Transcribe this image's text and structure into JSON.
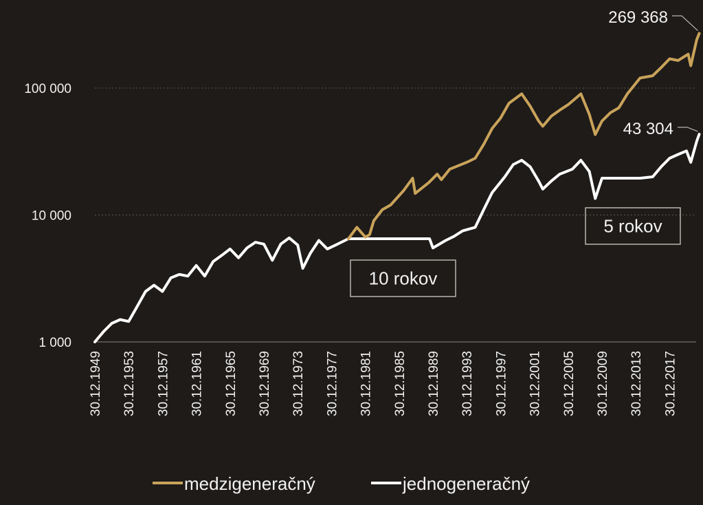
{
  "chart_data": {
    "type": "line",
    "title": "",
    "xlabel": "",
    "ylabel": "",
    "y_scale": "log",
    "ylim": [
      1000,
      300000
    ],
    "xlim": [
      1949.99,
      2021.5
    ],
    "grid": "horizontal dotted",
    "legend_position": "bottom",
    "y_ticks": [
      {
        "value": 1000,
        "label": "1 000"
      },
      {
        "value": 10000,
        "label": "10 000"
      },
      {
        "value": 100000,
        "label": "100 000"
      }
    ],
    "x_tick_labels": [
      {
        "year": 1950,
        "label": "30.12.1949"
      },
      {
        "year": 1954,
        "label": "30.12.1953"
      },
      {
        "year": 1958,
        "label": "30.12.1957"
      },
      {
        "year": 1962,
        "label": "30.12.1961"
      },
      {
        "year": 1966,
        "label": "30.12.1965"
      },
      {
        "year": 1970,
        "label": "30.12.1969"
      },
      {
        "year": 1974,
        "label": "30.12.1973"
      },
      {
        "year": 1978,
        "label": "30.12.1977"
      },
      {
        "year": 1982,
        "label": "30.12.1981"
      },
      {
        "year": 1986,
        "label": "30.12.1985"
      },
      {
        "year": 1990,
        "label": "30.12.1989"
      },
      {
        "year": 1994,
        "label": "30.12.1993"
      },
      {
        "year": 1998,
        "label": "30.12.1997"
      },
      {
        "year": 2002,
        "label": "30.12.2001"
      },
      {
        "year": 2006,
        "label": "30.12.2005"
      },
      {
        "year": 2010,
        "label": "30.12.2009"
      },
      {
        "year": 2014,
        "label": "30.12.2013"
      },
      {
        "year": 2018,
        "label": "30.12.2017"
      }
    ],
    "series": [
      {
        "name": "medzigeneračný",
        "color": "#c9a35a",
        "points": [
          [
            1980.0,
            6500
          ],
          [
            1981.0,
            8000
          ],
          [
            1982.0,
            6700
          ],
          [
            1982.5,
            7000
          ],
          [
            1983.0,
            9000
          ],
          [
            1984.0,
            11000
          ],
          [
            1985.0,
            12000
          ],
          [
            1986.5,
            15500
          ],
          [
            1987.6,
            19500
          ],
          [
            1987.9,
            14800
          ],
          [
            1989.5,
            18000
          ],
          [
            1990.5,
            21000
          ],
          [
            1991.0,
            19000
          ],
          [
            1992.0,
            23000
          ],
          [
            1994.0,
            26000
          ],
          [
            1995.0,
            28000
          ],
          [
            1996.0,
            36000
          ],
          [
            1997.0,
            48000
          ],
          [
            1998.0,
            58000
          ],
          [
            1999.0,
            76000
          ],
          [
            2000.5,
            90000
          ],
          [
            2001.5,
            72000
          ],
          [
            2002.5,
            55000
          ],
          [
            2003.0,
            50000
          ],
          [
            2004.0,
            60000
          ],
          [
            2005.0,
            67000
          ],
          [
            2006.0,
            74000
          ],
          [
            2007.5,
            90000
          ],
          [
            2008.5,
            62000
          ],
          [
            2009.2,
            43000
          ],
          [
            2010.0,
            55000
          ],
          [
            2011.0,
            64000
          ],
          [
            2012.0,
            70000
          ],
          [
            2013.0,
            90000
          ],
          [
            2014.5,
            120000
          ],
          [
            2016.0,
            125000
          ],
          [
            2017.0,
            145000
          ],
          [
            2018.0,
            170000
          ],
          [
            2019.0,
            165000
          ],
          [
            2020.2,
            185000
          ],
          [
            2020.5,
            150000
          ],
          [
            2021.2,
            240000
          ],
          [
            2021.5,
            269368
          ]
        ]
      },
      {
        "name": "jednogeneračný",
        "color": "#ffffff",
        "points": [
          [
            1950.0,
            1000
          ],
          [
            1951.0,
            1200
          ],
          [
            1952.0,
            1400
          ],
          [
            1953.0,
            1500
          ],
          [
            1954.0,
            1450
          ],
          [
            1955.0,
            1900
          ],
          [
            1956.0,
            2500
          ],
          [
            1957.0,
            2800
          ],
          [
            1958.0,
            2500
          ],
          [
            1959.0,
            3200
          ],
          [
            1960.0,
            3400
          ],
          [
            1961.0,
            3300
          ],
          [
            1962.0,
            4000
          ],
          [
            1963.0,
            3300
          ],
          [
            1964.0,
            4300
          ],
          [
            1965.0,
            4800
          ],
          [
            1966.0,
            5400
          ],
          [
            1967.0,
            4600
          ],
          [
            1968.0,
            5500
          ],
          [
            1969.0,
            6100
          ],
          [
            1970.0,
            5900
          ],
          [
            1971.0,
            4400
          ],
          [
            1972.0,
            5900
          ],
          [
            1973.0,
            6600
          ],
          [
            1974.0,
            5800
          ],
          [
            1974.6,
            3800
          ],
          [
            1975.5,
            5000
          ],
          [
            1976.5,
            6300
          ],
          [
            1977.5,
            5400
          ],
          [
            1978.5,
            5800
          ],
          [
            1980.0,
            6500
          ],
          [
            1989.6,
            6500
          ],
          [
            1990.0,
            5500
          ],
          [
            1991.5,
            6300
          ],
          [
            1992.5,
            6800
          ],
          [
            1993.5,
            7500
          ],
          [
            1995.0,
            8000
          ],
          [
            1996.0,
            11000
          ],
          [
            1997.0,
            15000
          ],
          [
            1998.5,
            20000
          ],
          [
            1999.5,
            25000
          ],
          [
            2000.5,
            27000
          ],
          [
            2001.5,
            24000
          ],
          [
            2002.5,
            18500
          ],
          [
            2003.0,
            16000
          ],
          [
            2004.0,
            18500
          ],
          [
            2005.0,
            21000
          ],
          [
            2006.5,
            23000
          ],
          [
            2007.5,
            27000
          ],
          [
            2008.5,
            22000
          ],
          [
            2009.2,
            13500
          ],
          [
            2010.0,
            19500
          ],
          [
            2014.5,
            19500
          ],
          [
            2016.0,
            20000
          ],
          [
            2017.0,
            24000
          ],
          [
            2018.0,
            28000
          ],
          [
            2019.0,
            30000
          ],
          [
            2020.0,
            32000
          ],
          [
            2020.5,
            26000
          ],
          [
            2021.2,
            38000
          ],
          [
            2021.5,
            43304
          ]
        ]
      }
    ],
    "end_labels": [
      {
        "series": "medzigeneračný",
        "text": "269 368"
      },
      {
        "series": "jednogeneračný",
        "text": "43 304"
      }
    ],
    "annotations": [
      {
        "text": "10 rokov"
      },
      {
        "text": "5 rokov"
      }
    ]
  }
}
